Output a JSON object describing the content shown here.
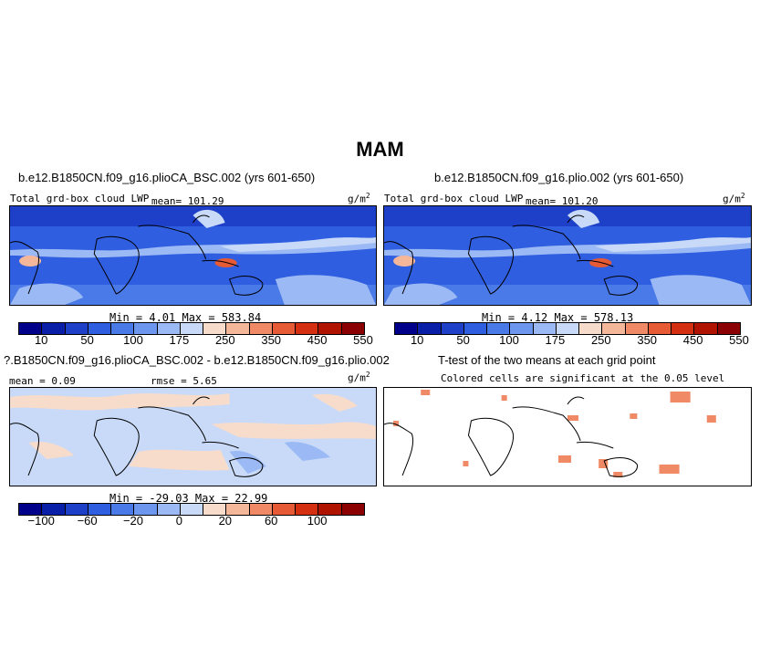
{
  "title": "MAM",
  "panels": {
    "top_left": {
      "title": "b.e12.B1850CN.f09_g16.plioCA_BSC.002 (yrs 601-650)",
      "field_label": "Total grd-box cloud LWP",
      "mean_label": "mean= 101.29",
      "units": "g/m",
      "units_sup": "2",
      "minmax": "Min =    4.01  Max = 583.84"
    },
    "top_right": {
      "title": "b.e12.B1850CN.f09_g16.plio.002 (yrs 601-650)",
      "field_label": "Total grd-box cloud LWP",
      "mean_label": "mean= 101.20",
      "units": "g/m",
      "units_sup": "2",
      "minmax": "Min =    4.12  Max = 578.13"
    },
    "bottom_left": {
      "title": "?.B1850CN.f09_g16.plioCA_BSC.002 - b.e12.B1850CN.f09_g16.plio.002",
      "mean_label": "mean =   0.09",
      "rmse_label": "rmse =   5.65",
      "units": "g/m",
      "units_sup": "2",
      "minmax": "Min = -29.03  Max =  22.99"
    },
    "bottom_right": {
      "title": "T-test of the two means at each grid point",
      "subtitle": "Colored cells are significant at the 0.05 level"
    }
  },
  "colorbars": {
    "abs": {
      "colors": [
        "#00008b",
        "#0a1fa8",
        "#1e3fc8",
        "#2f5ee0",
        "#4a7ae8",
        "#6d97ee",
        "#9bb9f4",
        "#c8daf8",
        "#f7dccc",
        "#f5b79a",
        "#f08a66",
        "#e65a35",
        "#d42f10",
        "#b01400",
        "#8b0000"
      ],
      "labels": [
        "10",
        "50",
        "100",
        "175",
        "250",
        "350",
        "450",
        "550"
      ]
    },
    "diff": {
      "colors": [
        "#00008b",
        "#0a1fa8",
        "#1e3fc8",
        "#2f5ee0",
        "#4a7ae8",
        "#6d97ee",
        "#9bb9f4",
        "#c8daf8",
        "#f7dccc",
        "#f5b79a",
        "#f08a66",
        "#e65a35",
        "#d42f10",
        "#b01400",
        "#8b0000"
      ],
      "labels": [
        "−100",
        "−60",
        "−20",
        "0",
        "20",
        "60",
        "100"
      ]
    }
  }
}
